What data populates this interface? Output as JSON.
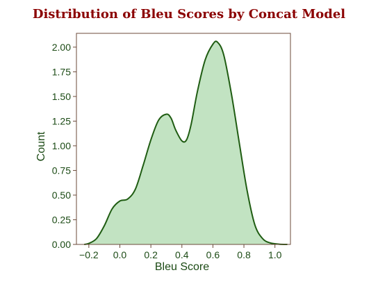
{
  "chart_data": {
    "type": "area",
    "title": "Distribution of Bleu Scores by Concat Model",
    "xlabel": "Bleu Score",
    "ylabel": "Count",
    "xlim": [
      -0.28,
      1.1
    ],
    "ylim": [
      0,
      2.14
    ],
    "x_ticks": [
      -0.2,
      0.0,
      0.2,
      0.4,
      0.6,
      0.8,
      1.0
    ],
    "x_tick_labels": [
      "−0.2",
      "0.0",
      "0.2",
      "0.4",
      "0.6",
      "0.8",
      "1.0"
    ],
    "y_ticks": [
      0,
      0.25,
      0.5,
      0.75,
      1.0,
      1.25,
      1.5,
      1.75,
      2.0
    ],
    "y_tick_labels": [
      "0.00",
      "0.25",
      "0.50",
      "0.75",
      "1.00",
      "1.25",
      "1.50",
      "1.75",
      "2.00"
    ],
    "grid": false,
    "legend": "none",
    "series": [
      {
        "x": [
          -0.23,
          -0.2,
          -0.15,
          -0.1,
          -0.05,
          0.0,
          0.05,
          0.1,
          0.15,
          0.2,
          0.25,
          0.3,
          0.33,
          0.36,
          0.4,
          0.43,
          0.46,
          0.5,
          0.55,
          0.6,
          0.63,
          0.67,
          0.72,
          0.77,
          0.82,
          0.87,
          0.92,
          0.97,
          1.03,
          1.08
        ],
        "y": [
          0.0,
          0.01,
          0.06,
          0.19,
          0.36,
          0.44,
          0.46,
          0.56,
          0.8,
          1.06,
          1.26,
          1.32,
          1.28,
          1.16,
          1.05,
          1.06,
          1.22,
          1.55,
          1.87,
          2.03,
          2.05,
          1.92,
          1.52,
          1.03,
          0.55,
          0.2,
          0.06,
          0.015,
          0.002,
          0.0
        ]
      }
    ],
    "colors": {
      "fill": "#c2e3c2",
      "line": "#1f5c12",
      "title": "#8b0000",
      "text": "#1b4a14",
      "axis": "#6b4a3a"
    }
  }
}
